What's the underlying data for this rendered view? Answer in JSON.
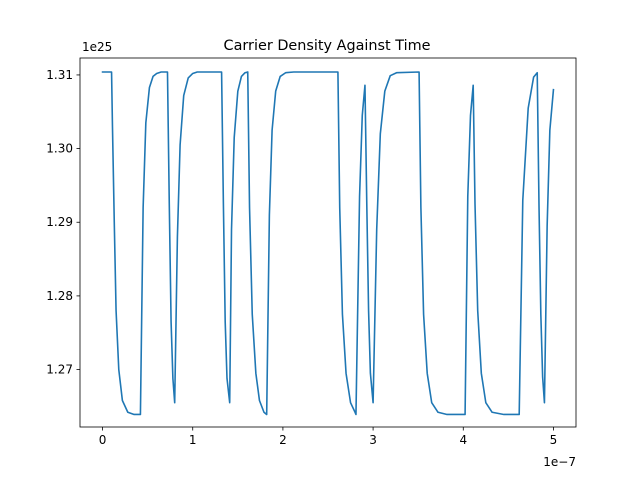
{
  "chart_data": {
    "type": "line",
    "title": "Carrier Density Against Time",
    "xlabel": "",
    "ylabel": "",
    "x_offset_label": "1e−7",
    "y_offset_label": "1e25",
    "xlim": [
      -0.25,
      5.25
    ],
    "ylim": [
      1.2622,
      1.3123
    ],
    "x_ticks": [
      0,
      1,
      2,
      3,
      4,
      5
    ],
    "x_tick_labels": [
      "0",
      "1",
      "2",
      "3",
      "4",
      "5"
    ],
    "y_ticks": [
      1.27,
      1.28,
      1.29,
      1.3,
      1.31
    ],
    "y_tick_labels": [
      "1.27",
      "1.28",
      "1.29",
      "1.30",
      "1.31"
    ],
    "grid": false,
    "series": [
      {
        "color": "#1f77b4",
        "x": [
          0.0,
          0.1,
          0.11,
          0.13,
          0.15,
          0.18,
          0.22,
          0.28,
          0.35,
          0.42,
          0.42,
          0.45,
          0.48,
          0.52,
          0.56,
          0.6,
          0.65,
          0.72,
          0.72,
          0.74,
          0.76,
          0.78,
          0.8,
          0.8,
          0.83,
          0.86,
          0.9,
          0.95,
          1.0,
          1.05,
          1.1,
          1.32,
          1.32,
          1.34,
          1.36,
          1.38,
          1.41,
          1.41,
          1.43,
          1.46,
          1.5,
          1.54,
          1.58,
          1.61,
          1.61,
          1.63,
          1.66,
          1.7,
          1.74,
          1.79,
          1.82,
          1.82,
          1.85,
          1.88,
          1.92,
          1.97,
          2.03,
          2.12,
          2.61,
          2.61,
          2.63,
          2.66,
          2.7,
          2.75,
          2.8,
          2.81,
          2.81,
          2.85,
          2.88,
          2.91,
          2.91,
          2.93,
          2.95,
          2.97,
          3.0,
          3.0,
          3.04,
          3.08,
          3.13,
          3.19,
          3.26,
          3.51,
          3.51,
          3.53,
          3.56,
          3.6,
          3.65,
          3.72,
          3.82,
          4.02,
          4.02,
          4.05,
          4.08,
          4.11,
          4.11,
          4.13,
          4.16,
          4.2,
          4.25,
          4.32,
          4.45,
          4.62,
          4.62,
          4.66,
          4.72,
          4.78,
          4.82,
          4.82,
          4.84,
          4.86,
          4.88,
          4.9,
          4.9,
          4.93,
          4.96,
          5.0
        ],
        "y": [
          1.3104,
          1.3104,
          1.303,
          1.29,
          1.278,
          1.27,
          1.2658,
          1.2642,
          1.2639,
          1.2639,
          1.2639,
          1.292,
          1.3035,
          1.3083,
          1.3098,
          1.3102,
          1.3104,
          1.3104,
          1.3104,
          1.2925,
          1.2765,
          1.2688,
          1.2655,
          1.2655,
          1.288,
          1.3005,
          1.3072,
          1.3096,
          1.3102,
          1.3104,
          1.3104,
          1.3104,
          1.3104,
          1.2925,
          1.2765,
          1.2688,
          1.2655,
          1.2655,
          1.289,
          1.3015,
          1.3078,
          1.3098,
          1.3103,
          1.3104,
          1.3104,
          1.292,
          1.2775,
          1.2695,
          1.2658,
          1.2642,
          1.2639,
          1.2639,
          1.291,
          1.3025,
          1.3078,
          1.3098,
          1.3103,
          1.3104,
          1.3104,
          1.3104,
          1.292,
          1.2775,
          1.2695,
          1.2655,
          1.2642,
          1.2639,
          1.2639,
          1.2935,
          1.3045,
          1.3086,
          1.3086,
          1.2925,
          1.278,
          1.2695,
          1.2655,
          1.2655,
          1.289,
          1.302,
          1.3078,
          1.3099,
          1.3103,
          1.3104,
          1.3104,
          1.292,
          1.2775,
          1.2695,
          1.2655,
          1.2642,
          1.2639,
          1.2639,
          1.2639,
          1.2935,
          1.3045,
          1.3086,
          1.3086,
          1.2925,
          1.278,
          1.2695,
          1.2655,
          1.2642,
          1.2639,
          1.2639,
          1.2639,
          1.293,
          1.3055,
          1.3097,
          1.3103,
          1.3103,
          1.292,
          1.2775,
          1.269,
          1.2655,
          1.2655,
          1.2895,
          1.3025,
          1.308
        ]
      }
    ]
  }
}
